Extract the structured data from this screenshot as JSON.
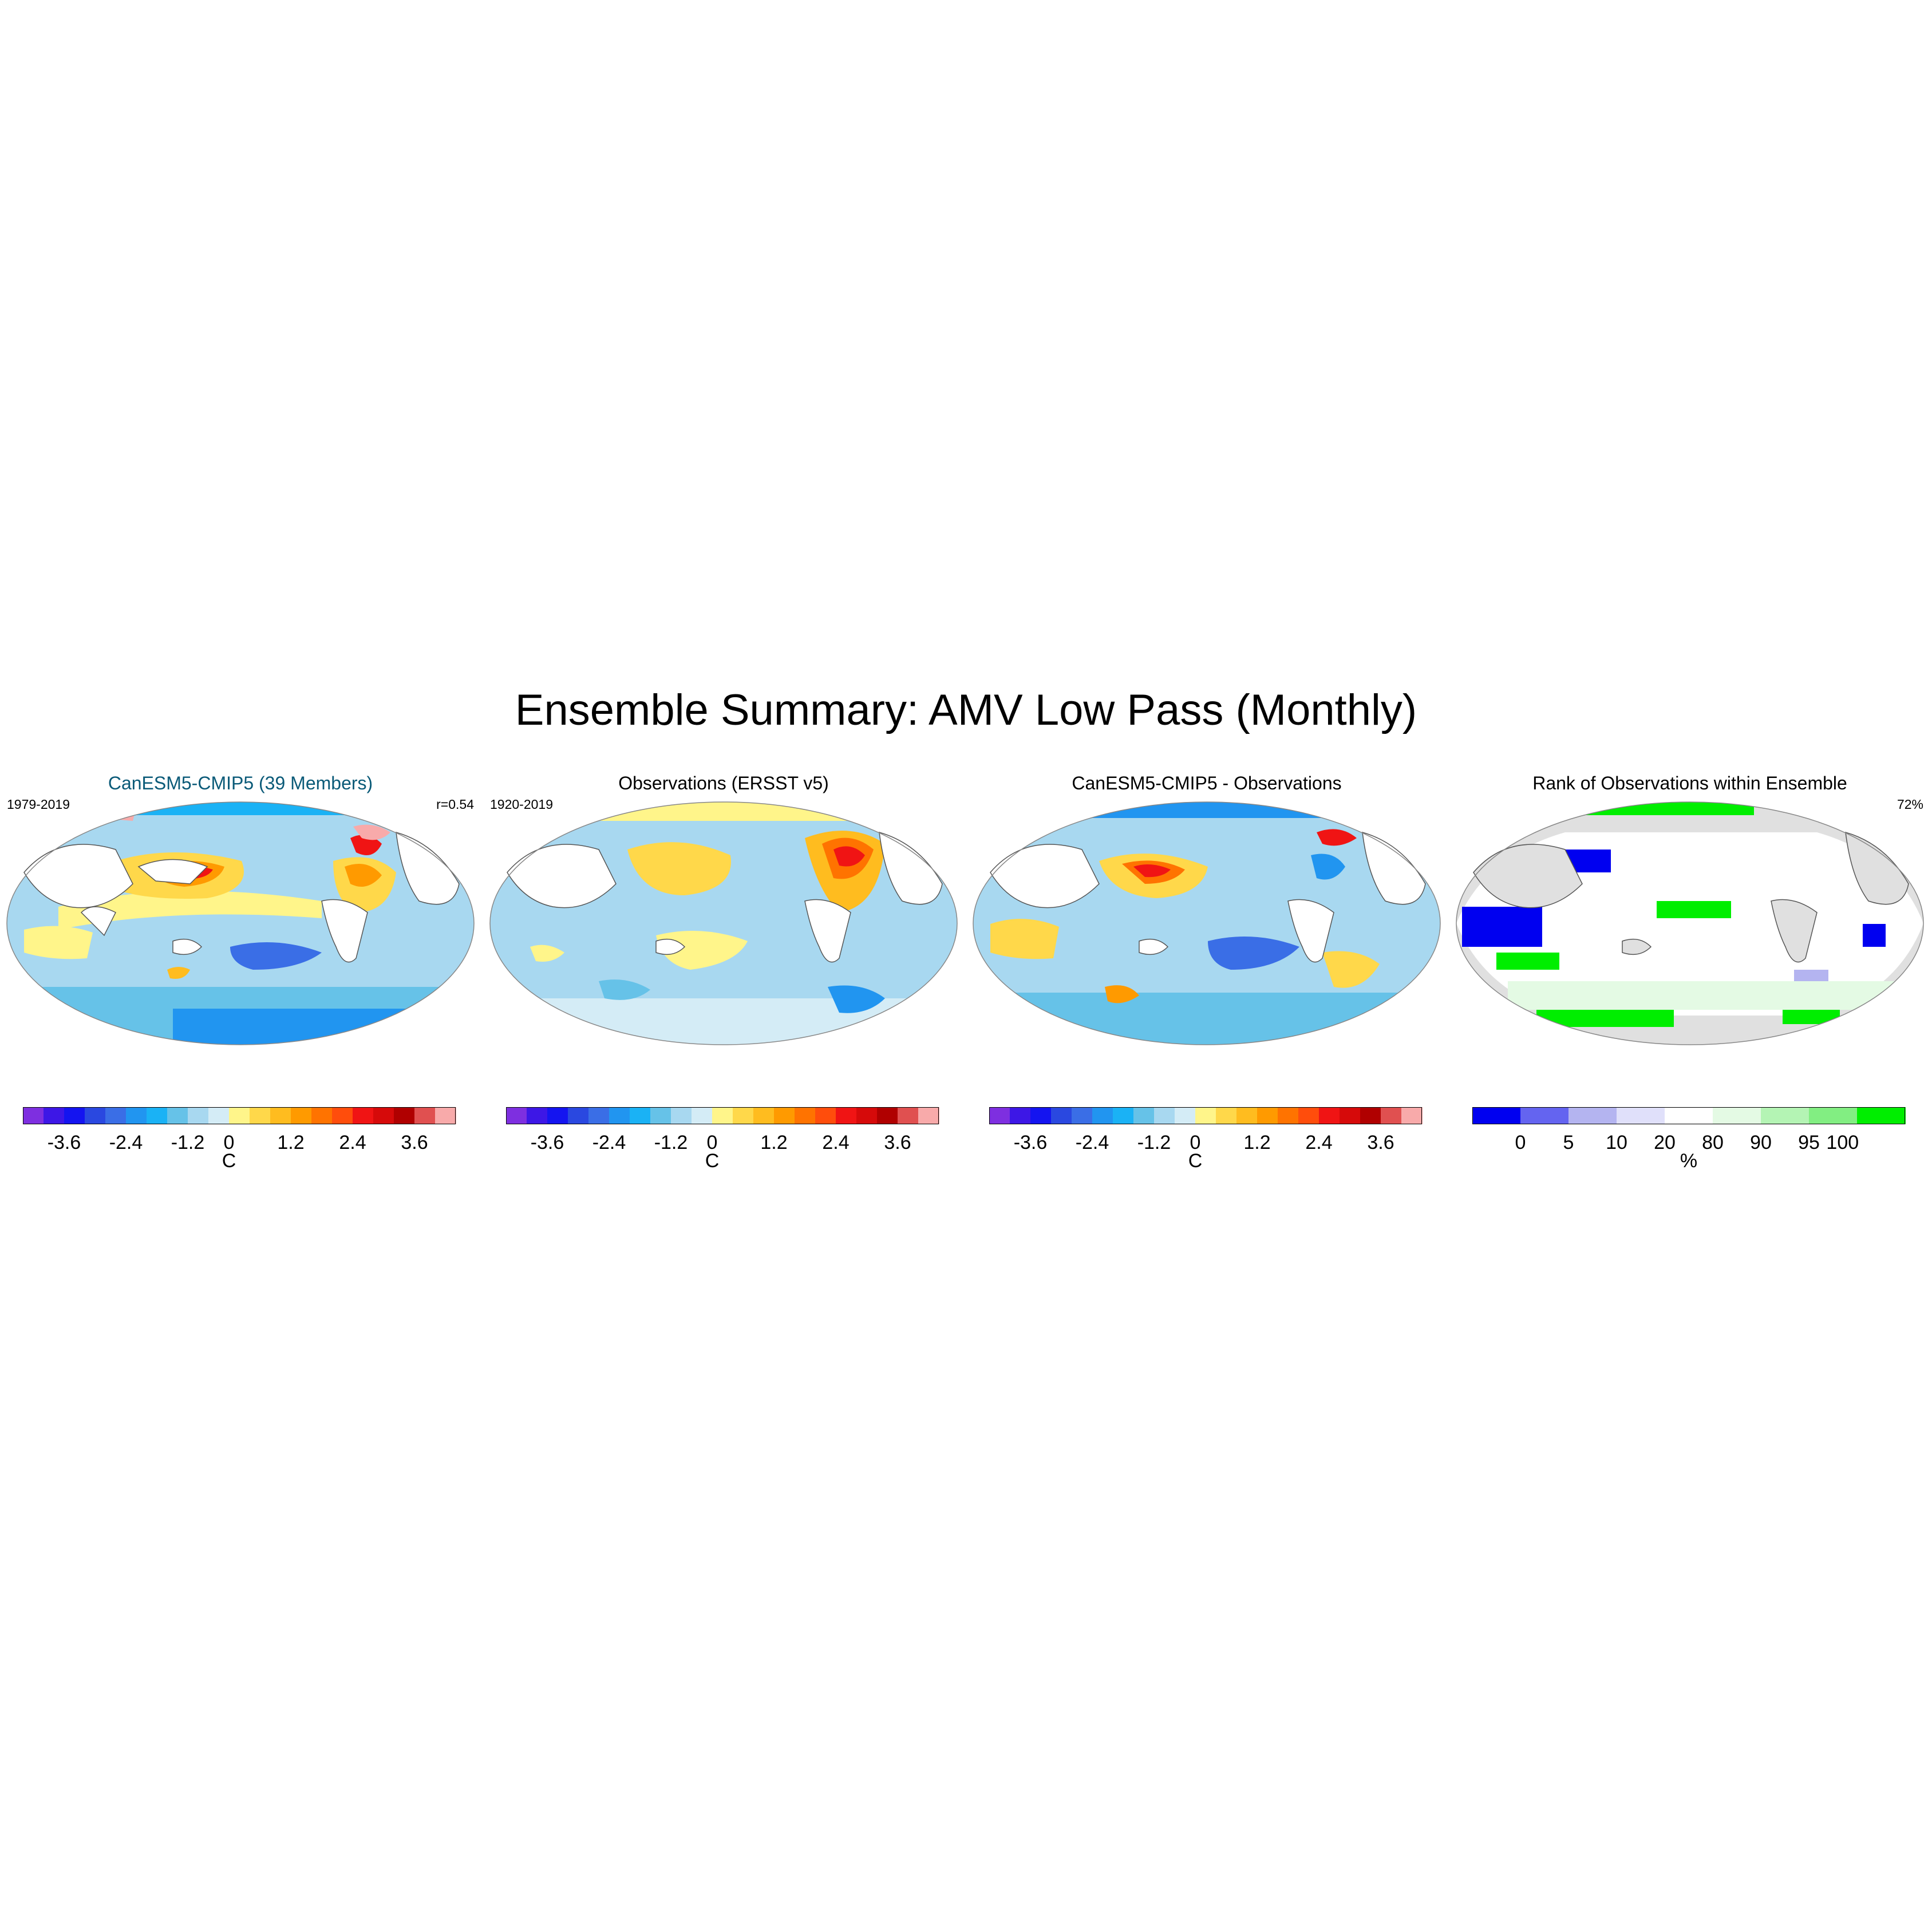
{
  "title": "Ensemble Summary: AMV Low Pass (Monthly)",
  "panels": [
    {
      "title": "CanESM5-CMIP5 (39 Members)",
      "left_label": "1979-2019",
      "right_label": "r=0.54",
      "colorbar": {
        "colors": [
          "#7e2fe0",
          "#3d17e6",
          "#1414f0",
          "#2a48e0",
          "#3a6ee6",
          "#2195f0",
          "#1ab2f5",
          "#66c2e8",
          "#a8d8f0",
          "#d4ecf6",
          "#fff58a",
          "#ffd84a",
          "#ffbc1f",
          "#ff9a00",
          "#ff7300",
          "#ff4d0c",
          "#f01414",
          "#d60a0a",
          "#b00000",
          "#e05050",
          "#f8aaaa"
        ],
        "ticks": [
          "-3.6",
          "-2.4",
          "-1.2",
          "0",
          "1.2",
          "2.4",
          "3.6"
        ],
        "unit": "C"
      }
    },
    {
      "title": "Observations (ERSST v5)",
      "left_label": "1920-2019",
      "right_label": "",
      "colorbar": {
        "colors": [
          "#7e2fe0",
          "#3d17e6",
          "#1414f0",
          "#2a48e0",
          "#3a6ee6",
          "#2195f0",
          "#1ab2f5",
          "#66c2e8",
          "#a8d8f0",
          "#d4ecf6",
          "#fff58a",
          "#ffd84a",
          "#ffbc1f",
          "#ff9a00",
          "#ff7300",
          "#ff4d0c",
          "#f01414",
          "#d60a0a",
          "#b00000",
          "#e05050",
          "#f8aaaa"
        ],
        "ticks": [
          "-3.6",
          "-2.4",
          "-1.2",
          "0",
          "1.2",
          "2.4",
          "3.6"
        ],
        "unit": "C"
      }
    },
    {
      "title": "CanESM5-CMIP5 - Observations",
      "left_label": "",
      "right_label": "",
      "colorbar": {
        "colors": [
          "#7e2fe0",
          "#3d17e6",
          "#1414f0",
          "#2a48e0",
          "#3a6ee6",
          "#2195f0",
          "#1ab2f5",
          "#66c2e8",
          "#a8d8f0",
          "#d4ecf6",
          "#fff58a",
          "#ffd84a",
          "#ffbc1f",
          "#ff9a00",
          "#ff7300",
          "#ff4d0c",
          "#f01414",
          "#d60a0a",
          "#b00000",
          "#e05050",
          "#f8aaaa"
        ],
        "ticks": [
          "-3.6",
          "-2.4",
          "-1.2",
          "0",
          "1.2",
          "2.4",
          "3.6"
        ],
        "unit": "C"
      }
    },
    {
      "title": "Rank of Observations within Ensemble",
      "left_label": "",
      "right_label": "72%",
      "colorbar": {
        "colors": [
          "#0000f0",
          "#6464f0",
          "#b4b4f0",
          "#e0e0fa",
          "#ffffff",
          "#e4fae4",
          "#b4f4b4",
          "#82ee82",
          "#00ee00"
        ],
        "ticks": [
          "0",
          "5",
          "10",
          "20",
          "80",
          "90",
          "95",
          "100"
        ],
        "unit": "%"
      }
    }
  ]
}
